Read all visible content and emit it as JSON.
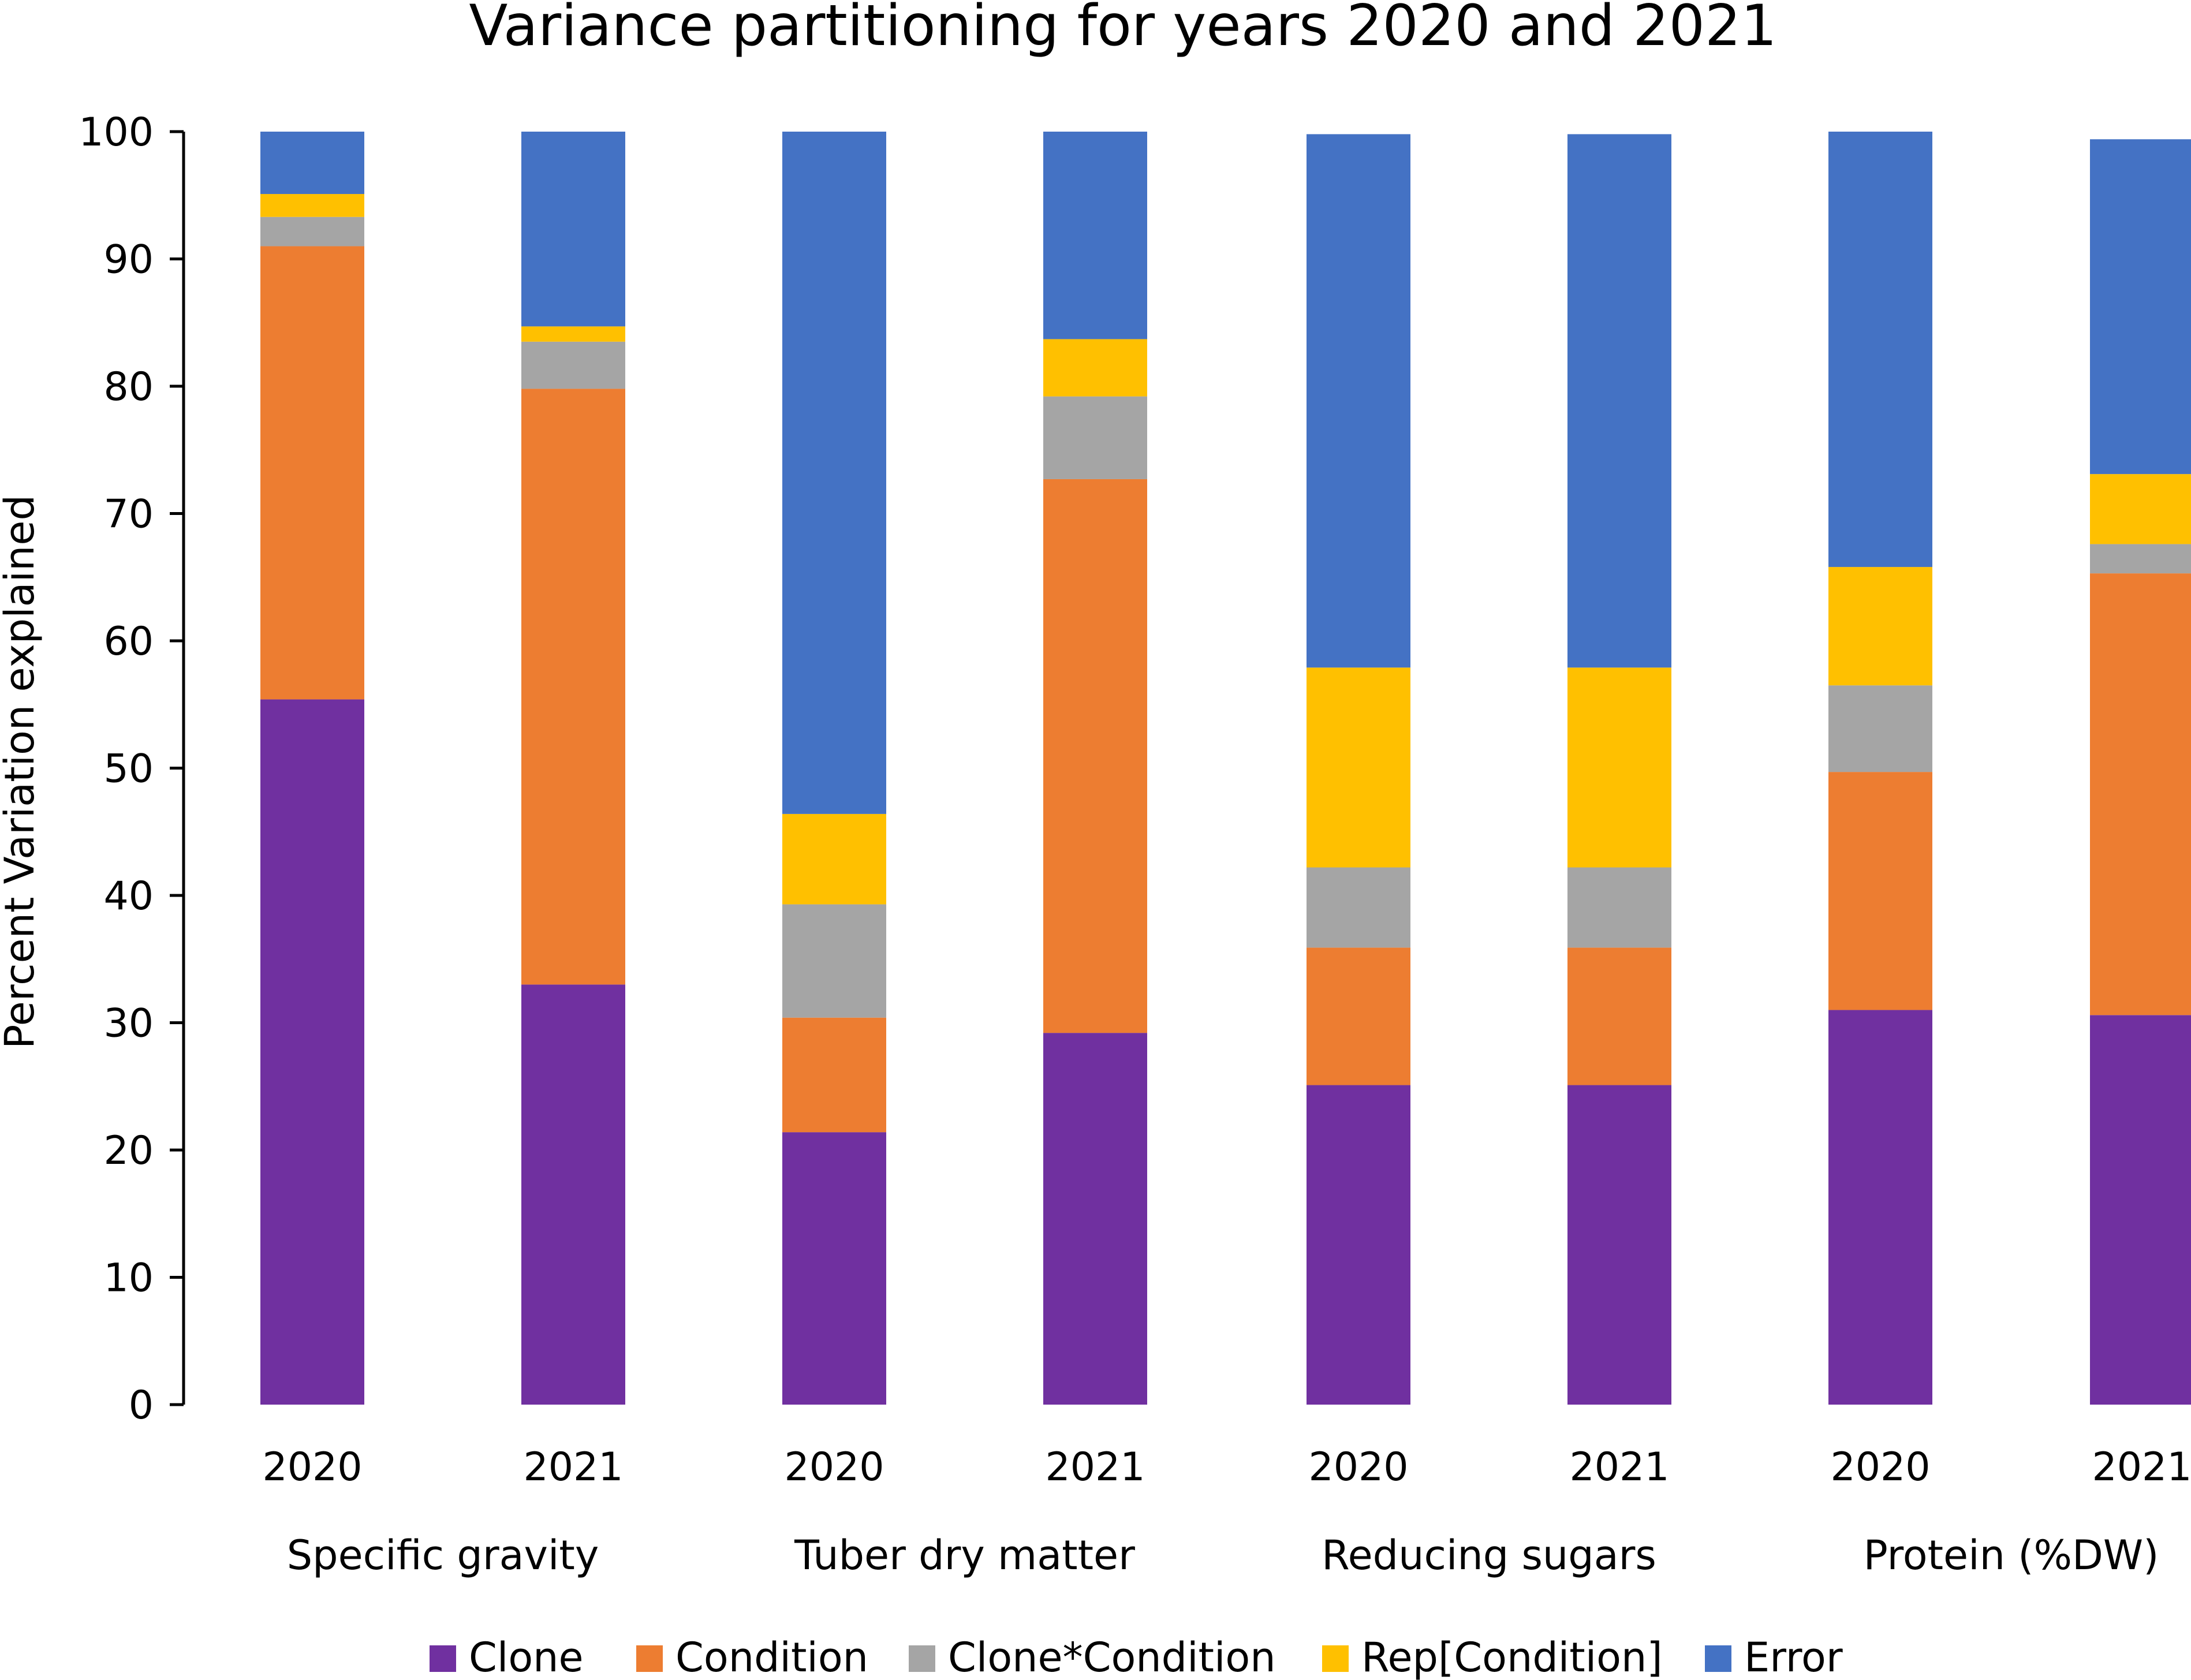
{
  "chart_data": {
    "type": "bar",
    "stacked": true,
    "title": "Variance partitioning for years 2020 and 2021",
    "ylabel": "Percent Variation explained",
    "xlabel": "",
    "ylim": [
      0,
      100
    ],
    "yticks": [
      0,
      10,
      20,
      30,
      40,
      50,
      60,
      70,
      80,
      90,
      100
    ],
    "categories": [
      "2020",
      "2021",
      "2020",
      "2021",
      "2020",
      "2021",
      "2020",
      "2021"
    ],
    "groups": [
      {
        "label": "Specific gravity",
        "bars": [
          0,
          1
        ]
      },
      {
        "label": "Tuber dry matter",
        "bars": [
          2,
          3
        ]
      },
      {
        "label": "Reducing sugars",
        "bars": [
          4,
          5
        ]
      },
      {
        "label": "Protein (%DW)",
        "bars": [
          6,
          7
        ]
      }
    ],
    "series": [
      {
        "name": "Clone",
        "color": "#7030A0",
        "values": [
          55.4,
          33.0,
          21.4,
          29.2,
          25.1,
          25.1,
          31.0,
          30.6
        ]
      },
      {
        "name": "Condition",
        "color": "#ED7D31",
        "values": [
          35.6,
          46.8,
          9.0,
          43.5,
          10.8,
          10.8,
          18.7,
          34.7
        ]
      },
      {
        "name": "Clone*Condition",
        "color": "#A5A5A5",
        "values": [
          2.3,
          3.7,
          8.9,
          6.5,
          6.3,
          6.3,
          6.8,
          2.3
        ]
      },
      {
        "name": "Rep[Condition]",
        "color": "#FFC000",
        "values": [
          1.8,
          1.2,
          7.1,
          4.5,
          15.7,
          15.7,
          9.3,
          5.5
        ]
      },
      {
        "name": "Error",
        "color": "#4472C4",
        "values": [
          4.9,
          15.3,
          53.6,
          16.3,
          41.9,
          41.9,
          34.2,
          26.3
        ]
      }
    ],
    "legend": "bottom"
  }
}
